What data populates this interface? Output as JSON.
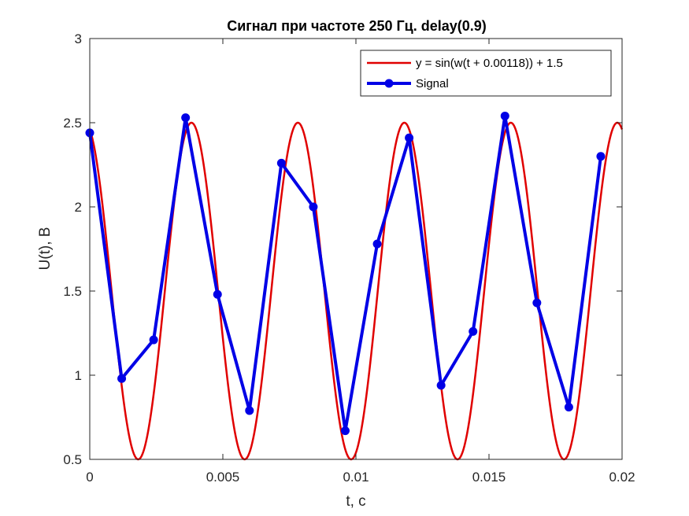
{
  "chart_data": {
    "type": "line",
    "title": "Сигнал при частоте 250 Гц. delay(0.9)",
    "xlabel": "t, c",
    "ylabel": "U(t), B",
    "xlim": [
      0,
      0.02
    ],
    "ylim": [
      0.5,
      3
    ],
    "xticks": [
      0,
      0.005,
      0.01,
      0.015,
      0.02
    ],
    "xtick_labels": [
      "0",
      "0.005",
      "0.01",
      "0.015",
      "0.02"
    ],
    "yticks": [
      0.5,
      1,
      1.5,
      2,
      2.5,
      3
    ],
    "ytick_labels": [
      "0.5",
      "1",
      "1.5",
      "2",
      "2.5",
      "3"
    ],
    "grid": false,
    "legend_position": "top-right",
    "series": [
      {
        "name": "y = sin(w(t + 0.00118)) + 1.5",
        "style": "line",
        "color": "#e00000",
        "function": {
          "amplitude": 1,
          "frequency": 250,
          "shift": 0.00118,
          "offset": 1.5
        }
      },
      {
        "name": "Signal",
        "style": "line-marker",
        "color": "#0000e6",
        "x": [
          0,
          0.0012,
          0.0024,
          0.0036,
          0.0048,
          0.006,
          0.0072,
          0.0084,
          0.0096,
          0.0108,
          0.012,
          0.0132,
          0.0144,
          0.0156,
          0.0168,
          0.018,
          0.0192
        ],
        "y": [
          2.44,
          0.98,
          1.21,
          2.53,
          1.48,
          0.79,
          2.26,
          2.0,
          0.67,
          1.78,
          2.41,
          0.94,
          1.26,
          2.54,
          1.43,
          0.81,
          2.3
        ]
      }
    ]
  }
}
